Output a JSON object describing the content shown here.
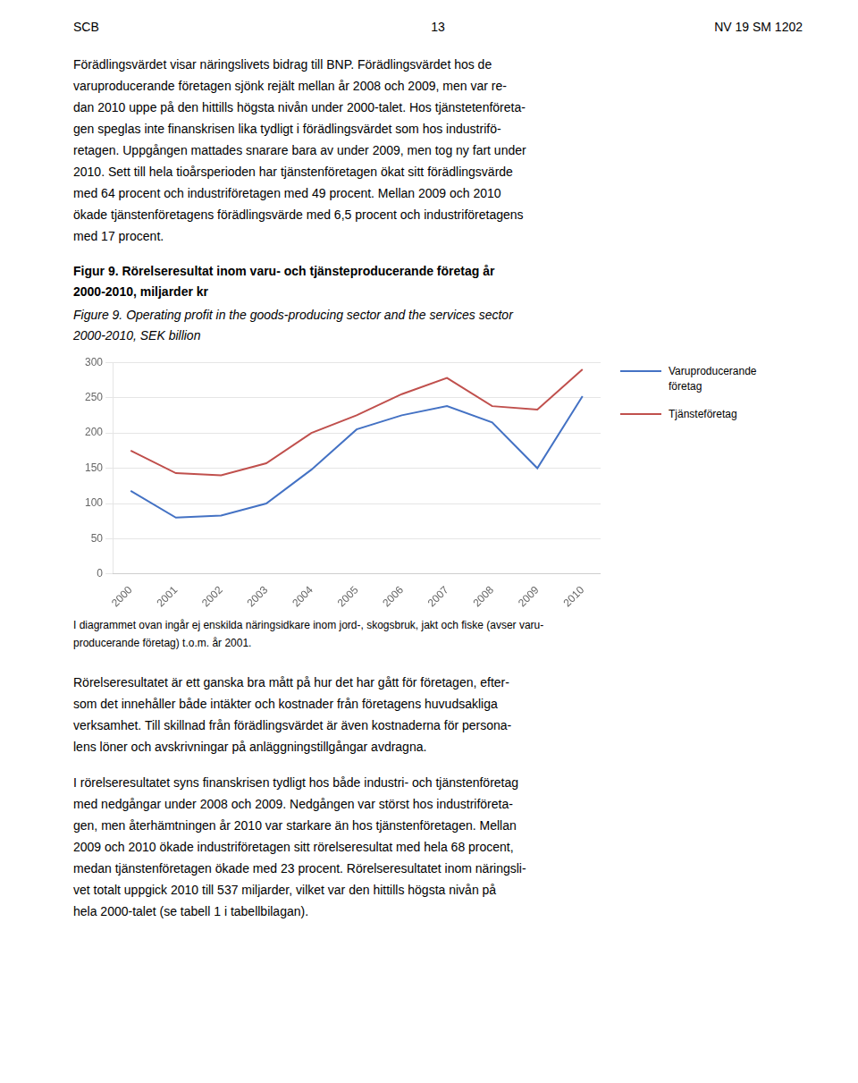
{
  "page": {
    "header": [
      "SCB",
      "13",
      "NV 19 SM 1202"
    ],
    "paragraphs_before": [
      [
        "Förädlingsvärdet visar näringslivets bidrag till BNP. Förädlingsvärdet hos de",
        "varuproducerande företagen sjönk rejält mellan år 2008 och 2009, men var re-",
        "dan 2010 uppe på den hittills högsta nivån under 2000-talet. Hos tjänstetenföreta-",
        "gen speglas inte finanskrisen lika tydligt i förädlingsvärdet som hos industrifö-",
        "retagen. Uppgången mattades snarare bara av under 2009, men tog ny fart under",
        "2010. Sett till hela tioårsperioden har tjänstenföretagen ökat sitt förädlingsvärde",
        "med 64 procent och industriföretagen med 49 procent. Mellan 2009 och 2010",
        "ökade tjänstenföretagens förädlingsvärde med 6,5 procent och industriföretagens",
        "med 17 procent."
      ]
    ],
    "paragraphs_after": [
      [
        "Rörelseresultatet är ett ganska bra mått på hur det har gått för företagen, efter-",
        "som det innehåller både intäkter och kostnader från företagens huvudsakliga",
        "verksamhet. Till skillnad från förädlingsvärdet är även kostnaderna för persona-",
        "lens löner och avskrivningar på anläggningstillgångar avdragna."
      ],
      [
        "I rörelseresultatet syns finanskrisen tydligt hos både industri- och tjänstenföretag",
        "med nedgångar under 2008 och 2009. Nedgången var störst hos industriföreta-",
        "gen, men återhämtningen år 2010 var starkare än hos tjänstenföretagen. Mellan",
        "2009 och 2010 ökade industriföretagen sitt rörelseresultat med hela 68 procent,",
        "medan tjänstenföretagen ökade med 23 procent. Rörelseresultatet inom näringsli-",
        "vet totalt uppgick 2010 till 537 miljarder, vilket var den hittills högsta nivån på",
        "hela 2000-talet (se tabell 1 i tabellbilagan)."
      ]
    ]
  },
  "chart_data": {
    "type": "line",
    "title": [
      "Figur 9. Rörelseresultat inom varu- och tjänsteproducerande företag år",
      "2000-2010, miljarder kr"
    ],
    "subtitle": [
      "Figure 9. Operating profit in the goods-producing sector and the services sector",
      "2000-2010, SEK billion"
    ],
    "x": [
      2000,
      2001,
      2002,
      2003,
      2004,
      2005,
      2006,
      2007,
      2008,
      2009,
      2010
    ],
    "series": [
      {
        "name": "Varuproducerande företag",
        "color": "#4472C4",
        "values": [
          118,
          80,
          83,
          100,
          148,
          205,
          225,
          238,
          215,
          150,
          252
        ]
      },
      {
        "name": "Tjänsteföretag",
        "color": "#C0504D",
        "values": [
          175,
          143,
          140,
          157,
          200,
          225,
          255,
          278,
          238,
          233,
          290
        ]
      }
    ],
    "xlim": [
      1999.6,
      2010.4
    ],
    "xticks": [
      2000,
      2001,
      2002,
      2003,
      2004,
      2005,
      2006,
      2007,
      2008,
      2009,
      2010
    ],
    "ylim": [
      0,
      300
    ],
    "yticks": [
      0,
      50,
      100,
      150,
      200,
      250,
      300
    ],
    "grid": true,
    "legend": "right",
    "footnote": [
      "I diagrammet ovan ingår ej enskilda näringsidkare inom jord-, skogsbruk, jakt och fiske (avser varu-",
      "producerande företag) t.o.m. år 2001."
    ]
  }
}
